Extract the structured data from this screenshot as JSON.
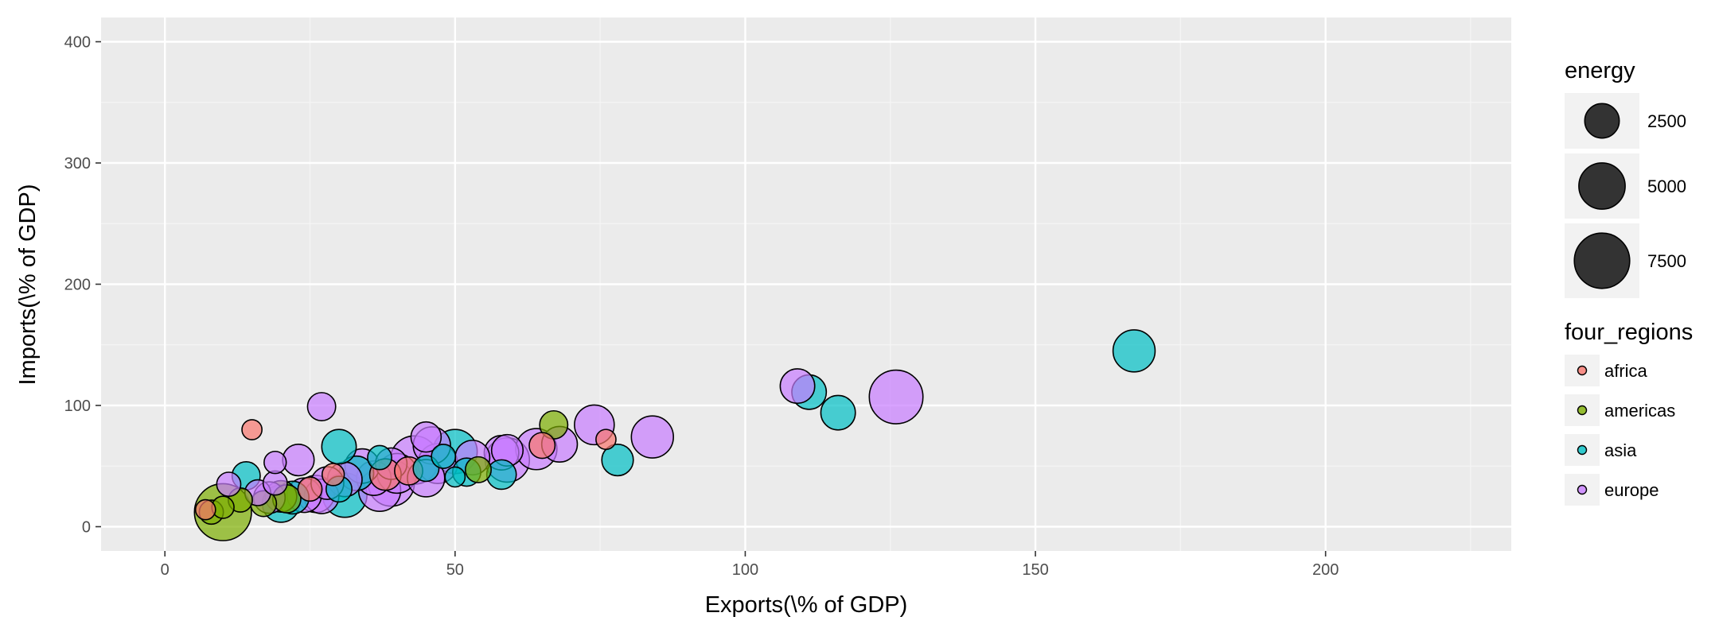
{
  "chart_data": {
    "type": "scatter",
    "title": "",
    "xlabel": "Exports(\\% of GDP)",
    "ylabel": "Imports(\\% of GDP)",
    "xlim": [
      -11,
      232
    ],
    "ylim": [
      -20,
      420
    ],
    "x_ticks": [
      0,
      50,
      100,
      150,
      200
    ],
    "y_ticks": [
      0,
      100,
      200,
      300,
      400
    ],
    "grid": true,
    "legend_position": "right",
    "size_legend": {
      "title": "energy",
      "entries": [
        {
          "label": "2500",
          "value": 2500
        },
        {
          "label": "5000",
          "value": 5000
        },
        {
          "label": "7500",
          "value": 7500
        }
      ]
    },
    "color_legend": {
      "title": "four_regions",
      "entries": [
        {
          "label": "africa",
          "color": "#F8766D"
        },
        {
          "label": "americas",
          "color": "#7CAE00"
        },
        {
          "label": "asia",
          "color": "#00BFC4"
        },
        {
          "label": "europe",
          "color": "#C77CFF"
        }
      ]
    },
    "points": [
      {
        "x": 167,
        "y": 145,
        "energy": 4000,
        "region": "asia"
      },
      {
        "x": 126,
        "y": 107,
        "energy": 7000,
        "region": "europe"
      },
      {
        "x": 116,
        "y": 94,
        "energy": 2500,
        "region": "asia"
      },
      {
        "x": 111,
        "y": 111,
        "energy": 2500,
        "region": "asia"
      },
      {
        "x": 109,
        "y": 116,
        "energy": 2500,
        "region": "europe"
      },
      {
        "x": 84,
        "y": 74,
        "energy": 4000,
        "region": "europe"
      },
      {
        "x": 78,
        "y": 55,
        "energy": 2000,
        "region": "asia"
      },
      {
        "x": 76,
        "y": 72,
        "energy": 600,
        "region": "africa"
      },
      {
        "x": 74,
        "y": 84,
        "energy": 3500,
        "region": "europe"
      },
      {
        "x": 68,
        "y": 68,
        "energy": 2700,
        "region": "europe"
      },
      {
        "x": 67,
        "y": 84,
        "energy": 1500,
        "region": "americas"
      },
      {
        "x": 65,
        "y": 67,
        "energy": 1200,
        "region": "africa"
      },
      {
        "x": 64,
        "y": 64,
        "energy": 3800,
        "region": "europe"
      },
      {
        "x": 59,
        "y": 55,
        "energy": 4500,
        "region": "europe"
      },
      {
        "x": 59,
        "y": 63,
        "energy": 2000,
        "region": "europe"
      },
      {
        "x": 58,
        "y": 61,
        "energy": 2500,
        "region": "europe"
      },
      {
        "x": 58,
        "y": 43,
        "energy": 1700,
        "region": "asia"
      },
      {
        "x": 54,
        "y": 47,
        "energy": 1200,
        "region": "americas"
      },
      {
        "x": 53,
        "y": 57,
        "energy": 2500,
        "region": "europe"
      },
      {
        "x": 52,
        "y": 45,
        "energy": 1500,
        "region": "asia"
      },
      {
        "x": 50,
        "y": 62,
        "energy": 4500,
        "region": "asia"
      },
      {
        "x": 50,
        "y": 41,
        "energy": 600,
        "region": "asia"
      },
      {
        "x": 48,
        "y": 58,
        "energy": 1000,
        "region": "asia"
      },
      {
        "x": 47,
        "y": 52,
        "energy": 3500,
        "region": "europe"
      },
      {
        "x": 46,
        "y": 67,
        "energy": 3000,
        "region": "europe"
      },
      {
        "x": 45,
        "y": 74,
        "energy": 1800,
        "region": "europe"
      },
      {
        "x": 45,
        "y": 48,
        "energy": 1200,
        "region": "asia"
      },
      {
        "x": 45,
        "y": 40,
        "energy": 3000,
        "region": "europe"
      },
      {
        "x": 43,
        "y": 55,
        "energy": 5500,
        "region": "europe"
      },
      {
        "x": 42,
        "y": 46,
        "energy": 1500,
        "region": "africa"
      },
      {
        "x": 40,
        "y": 44,
        "energy": 3500,
        "region": "europe"
      },
      {
        "x": 39,
        "y": 52,
        "energy": 2000,
        "region": "europe"
      },
      {
        "x": 39,
        "y": 36,
        "energy": 5000,
        "region": "europe"
      },
      {
        "x": 38,
        "y": 43,
        "energy": 2000,
        "region": "africa"
      },
      {
        "x": 37,
        "y": 57,
        "energy": 1000,
        "region": "asia"
      },
      {
        "x": 37,
        "y": 30,
        "energy": 4000,
        "region": "europe"
      },
      {
        "x": 36,
        "y": 40,
        "energy": 2500,
        "region": "europe"
      },
      {
        "x": 34,
        "y": 50,
        "energy": 2500,
        "region": "europe"
      },
      {
        "x": 33,
        "y": 44,
        "energy": 2500,
        "region": "asia"
      },
      {
        "x": 31,
        "y": 39,
        "energy": 2500,
        "region": "europe"
      },
      {
        "x": 31,
        "y": 26,
        "energy": 4500,
        "region": "asia"
      },
      {
        "x": 30,
        "y": 66,
        "energy": 2500,
        "region": "asia"
      },
      {
        "x": 30,
        "y": 31,
        "energy": 1200,
        "region": "asia"
      },
      {
        "x": 29,
        "y": 43,
        "energy": 800,
        "region": "africa"
      },
      {
        "x": 28,
        "y": 36,
        "energy": 2200,
        "region": "europe"
      },
      {
        "x": 27,
        "y": 99,
        "energy": 1500,
        "region": "europe"
      },
      {
        "x": 27,
        "y": 25,
        "energy": 2500,
        "region": "europe"
      },
      {
        "x": 26,
        "y": 27,
        "energy": 3000,
        "region": "europe"
      },
      {
        "x": 25,
        "y": 31,
        "energy": 1000,
        "region": "africa"
      },
      {
        "x": 24,
        "y": 26,
        "energy": 2500,
        "region": "europe"
      },
      {
        "x": 23,
        "y": 55,
        "energy": 2000,
        "region": "europe"
      },
      {
        "x": 22,
        "y": 24,
        "energy": 2200,
        "region": "asia"
      },
      {
        "x": 21,
        "y": 23,
        "energy": 1500,
        "region": "americas"
      },
      {
        "x": 20,
        "y": 19,
        "energy": 3000,
        "region": "asia"
      },
      {
        "x": 20,
        "y": 25,
        "energy": 2000,
        "region": "americas"
      },
      {
        "x": 19,
        "y": 53,
        "energy": 800,
        "region": "europe"
      },
      {
        "x": 19,
        "y": 36,
        "energy": 1000,
        "region": "europe"
      },
      {
        "x": 18,
        "y": 24,
        "energy": 2000,
        "region": "europe"
      },
      {
        "x": 17,
        "y": 19,
        "energy": 1200,
        "region": "americas"
      },
      {
        "x": 16,
        "y": 28,
        "energy": 1200,
        "region": "europe"
      },
      {
        "x": 15,
        "y": 80,
        "energy": 600,
        "region": "africa"
      },
      {
        "x": 14,
        "y": 42,
        "energy": 1500,
        "region": "asia"
      },
      {
        "x": 13,
        "y": 22,
        "energy": 1000,
        "region": "americas"
      },
      {
        "x": 11,
        "y": 35,
        "energy": 1000,
        "region": "europe"
      },
      {
        "x": 10,
        "y": 12,
        "energy": 8000,
        "region": "americas"
      },
      {
        "x": 10,
        "y": 16,
        "energy": 800,
        "region": "americas"
      },
      {
        "x": 8,
        "y": 12,
        "energy": 1000,
        "region": "americas"
      },
      {
        "x": 7,
        "y": 14,
        "energy": 600,
        "region": "africa"
      }
    ]
  }
}
